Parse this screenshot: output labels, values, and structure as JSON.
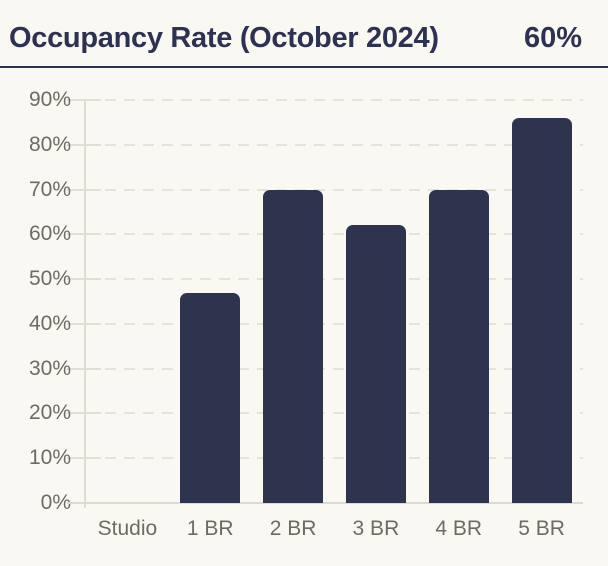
{
  "header": {
    "title": "Occupancy Rate (October 2024)",
    "value": "60%"
  },
  "chart_data": {
    "type": "bar",
    "categories": [
      "Studio",
      "1 BR",
      "2 BR",
      "3 BR",
      "4 BR",
      "5 BR"
    ],
    "values": [
      0,
      47,
      70,
      62,
      70,
      86
    ],
    "title": "Occupancy Rate (October 2024)",
    "xlabel": "",
    "ylabel": "",
    "ylim": [
      0,
      90
    ],
    "ytick_step": 10,
    "ytick_suffix": "%",
    "grid": true,
    "gridline_style": "dashed",
    "legend": "none",
    "colors": {
      "background": "#FAF8F2",
      "bar": "#2F344E",
      "title": "#2D3252",
      "grid": "#E6E3DB",
      "axis_label": "#6E6B64"
    }
  }
}
